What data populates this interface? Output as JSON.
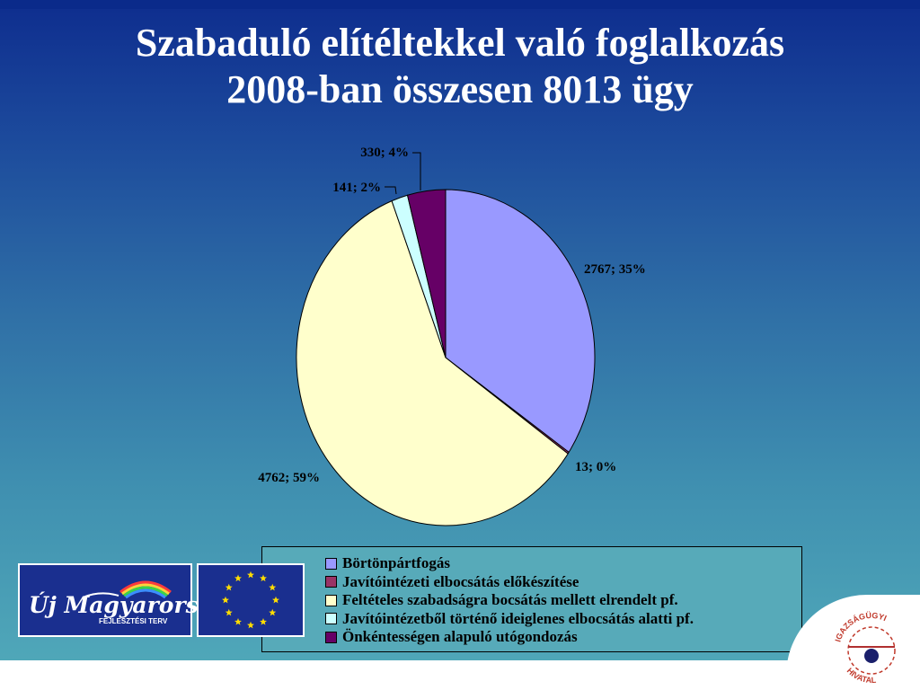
{
  "title": {
    "line1": "Szabaduló elítéltekkel való foglalkozás",
    "line2": "2008-ban összesen 8013 ügy"
  },
  "chart_data": {
    "type": "pie",
    "title": "Szabaduló elítéltekkel való foglalkozás 2008-ban összesen 8013 ügy",
    "slices": [
      {
        "name": "Börtönpártfogás",
        "value": 2767,
        "percent": "35%",
        "label": "2767; 35%",
        "color": "#9999ff"
      },
      {
        "name": "Javítóintézeti elbocsátás előkészítése",
        "value": 13,
        "percent": "0%",
        "label": "13; 0%",
        "color": "#993366"
      },
      {
        "name": "Feltételes szabadságra bocsátás mellett elrendelt pf.",
        "value": 4762,
        "percent": "59%",
        "label": "4762; 59%",
        "color": "#ffffcc"
      },
      {
        "name": "Javítóintézetből történő ideiglenes elbocsátás alatti pf.",
        "value": 141,
        "percent": "2%",
        "label": "141; 2%",
        "color": "#ccffff"
      },
      {
        "name": "Önkéntességen alapuló utógondozás",
        "value": 330,
        "percent": "4%",
        "label": "330; 4%",
        "color": "#660066"
      }
    ],
    "legend_position": "bottom"
  },
  "legend": {
    "items": [
      {
        "label": "Börtönpártfogás",
        "color": "#9999ff"
      },
      {
        "label": "Javítóintézeti elbocsátás előkészítése",
        "color": "#993366"
      },
      {
        "label": "Feltételes szabadságra bocsátás mellett elrendelt pf.",
        "color": "#ffffcc"
      },
      {
        "label": "Javítóintézetből történő ideiglenes elbocsátás alatti pf.",
        "color": "#ccffff"
      },
      {
        "label": "Önkéntességen alapuló utógondozás",
        "color": "#660066"
      }
    ]
  },
  "logos": {
    "new_hungary": {
      "name": "Új Magyarország",
      "sub": "FEJLESZTÉSI TERV"
    },
    "eu_flag": "eu-flag-icon",
    "office": {
      "text": "IGAZSÁGÜGYI HIVATAL"
    }
  }
}
